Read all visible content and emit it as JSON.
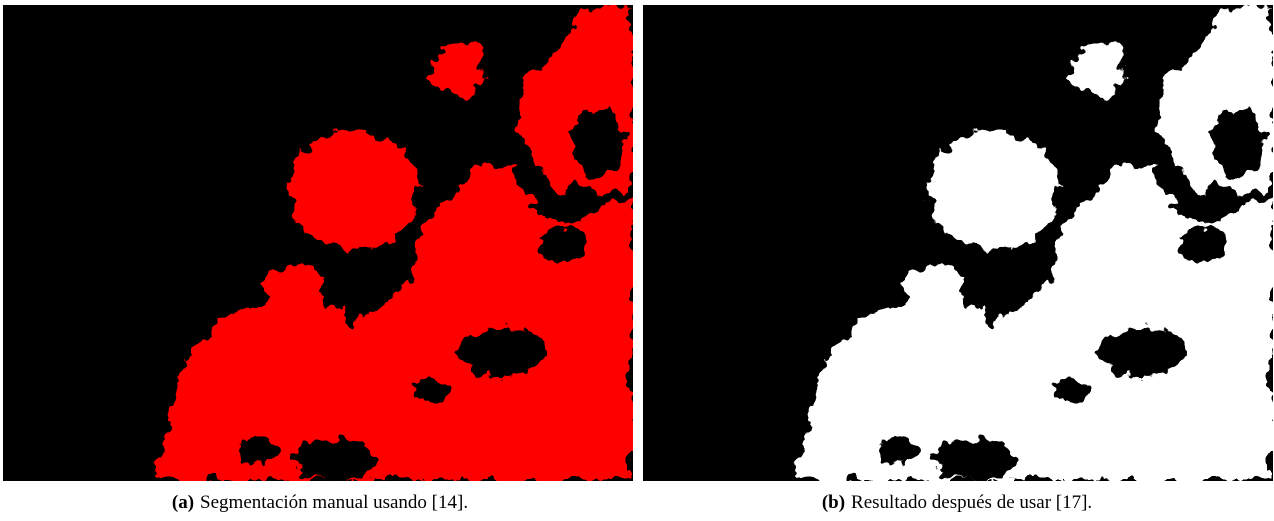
{
  "figures": [
    {
      "label": "(a)",
      "caption": "Segmentación manual usando [14]."
    },
    {
      "label": "(b)",
      "caption": "Resultado después de usar [17]."
    }
  ]
}
